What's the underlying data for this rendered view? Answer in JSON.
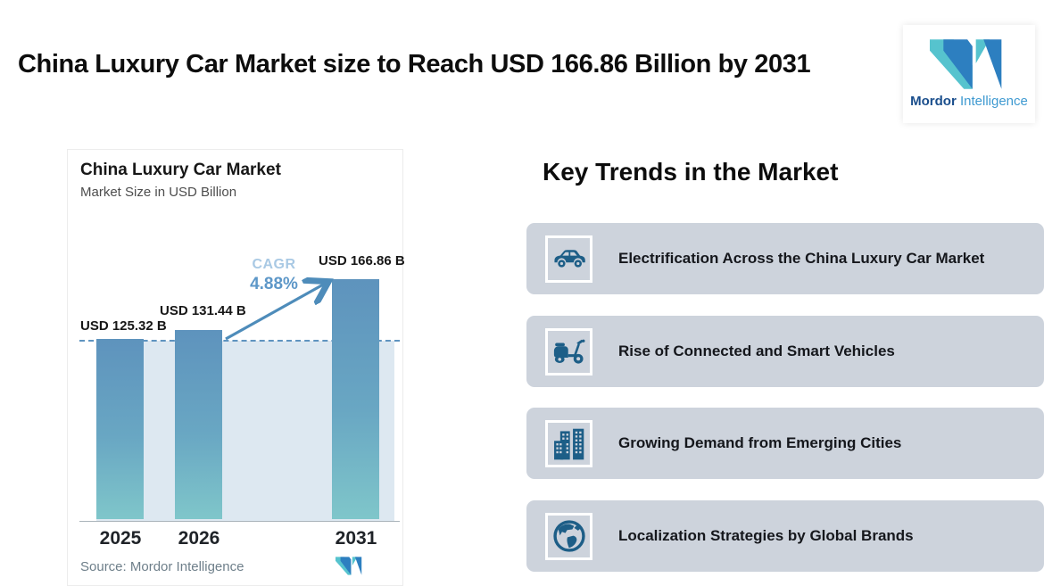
{
  "header": {
    "title": "China Luxury Car Market size to Reach USD 166.86 Billion by 2031"
  },
  "logo": {
    "brand_bold": "Mordor",
    "brand_light": "Intelligence"
  },
  "chart_data": {
    "type": "bar",
    "title": "China Luxury Car Market",
    "subtitle": "Market Size in USD Billion",
    "unit": "USD Billion",
    "categories": [
      "2025",
      "2026",
      "2031"
    ],
    "values": [
      125.32,
      131.44,
      166.86
    ],
    "value_labels": [
      "USD 125.32 B",
      "USD 131.44 B",
      "USD 166.86 B"
    ],
    "cagr_label": "CAGR",
    "cagr_value": "4.88%",
    "baseline_reference_value": 125.32,
    "grid": "off",
    "legend": "none",
    "source_prefix": "Source:",
    "source": "Mordor Intelligence"
  },
  "trends": {
    "heading": "Key Trends in the Market",
    "items": [
      {
        "icon": "car-icon",
        "label": "Electrification Across the China Luxury Car Market"
      },
      {
        "icon": "scooter-icon",
        "label": "Rise of Connected and Smart Vehicles"
      },
      {
        "icon": "buildings-icon",
        "label": "Growing Demand from Emerging Cities"
      },
      {
        "icon": "globe-icon",
        "label": "Localization Strategies by Global Brands"
      }
    ]
  },
  "colors": {
    "trend_card_bg": "#cdd3dc",
    "trend_icon_blue": "#1d5e87",
    "bar_gradient_top": "#5e93bd",
    "bar_gradient_bottom": "#7fc6ca",
    "shaded_area": "#dde8f1",
    "dashed_line": "#5f94c0",
    "arrow": "#4e8cba",
    "cagr_label_color": "#a9c9e4",
    "cagr_value_color": "#5d97c8",
    "logo_blue": "#2d7fc0",
    "logo_teal": "#56c3ce",
    "logo_text_dark": "#1a4e8c",
    "logo_text_light": "#3f9ad1"
  }
}
